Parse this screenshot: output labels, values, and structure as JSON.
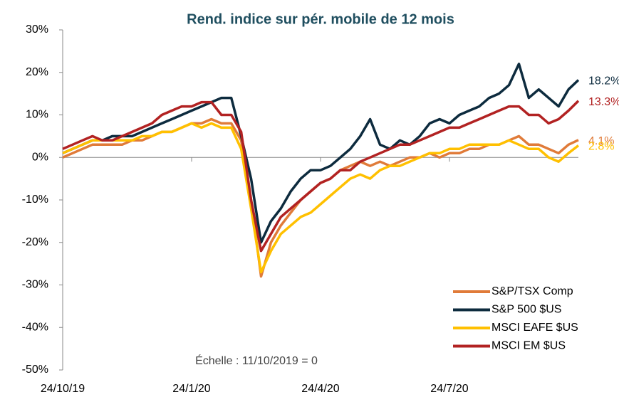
{
  "chart_data": {
    "type": "line",
    "title": "Rend. indice sur pér. mobile  de 12 mois",
    "annotation": "Échelle : 11/10/2019 = 0",
    "categories": [
      "24/10/19",
      null,
      null,
      null,
      null,
      null,
      null,
      null,
      null,
      null,
      null,
      null,
      null,
      "24/1/20",
      null,
      null,
      null,
      null,
      null,
      null,
      null,
      null,
      null,
      null,
      null,
      null,
      "24/4/20",
      null,
      null,
      null,
      null,
      null,
      null,
      null,
      null,
      null,
      null,
      null,
      null,
      "24/7/20",
      null,
      null,
      null,
      null,
      null,
      null,
      null,
      null,
      null,
      null,
      null,
      null,
      null
    ],
    "ylim": [
      -50,
      30
    ],
    "yticks": [
      {
        "value": -50,
        "label": "-50%"
      },
      {
        "value": -40,
        "label": "-40%"
      },
      {
        "value": -30,
        "label": "-30%"
      },
      {
        "value": -20,
        "label": "-20%"
      },
      {
        "value": -10,
        "label": "-10%"
      },
      {
        "value": 0,
        "label": "0%"
      },
      {
        "value": 10,
        "label": "10%"
      },
      {
        "value": 20,
        "label": "20%"
      },
      {
        "value": 30,
        "label": "30%"
      }
    ],
    "legend": "lower right",
    "series": [
      {
        "name": "S&P/TSX Comp",
        "color": "#e07b39",
        "end_label": "4.1%",
        "values": [
          0,
          1,
          2,
          3,
          3,
          3,
          3,
          4,
          4,
          5,
          6,
          6,
          7,
          8,
          8,
          9,
          8,
          8,
          4,
          -10,
          -28,
          -20,
          -16,
          -13,
          -10,
          -8,
          -6,
          -5,
          -3,
          -2,
          -1,
          -2,
          -1,
          -2,
          -1,
          0,
          0,
          1,
          0,
          1,
          1,
          2,
          2,
          3,
          3,
          4,
          5,
          3,
          3,
          2,
          1,
          3,
          4.1
        ]
      },
      {
        "name": "S&P 500 $US",
        "color": "#0d2b3e",
        "end_label": "18.2%",
        "values": [
          1,
          2,
          3,
          4,
          4,
          5,
          5,
          5,
          6,
          7,
          8,
          9,
          10,
          11,
          12,
          13,
          14,
          14,
          5,
          -5,
          -20,
          -15,
          -12,
          -8,
          -5,
          -3,
          -3,
          -2,
          0,
          2,
          5,
          9,
          3,
          2,
          4,
          3,
          5,
          8,
          9,
          8,
          10,
          11,
          12,
          14,
          15,
          17,
          22,
          14,
          16,
          14,
          12,
          16,
          18.2
        ]
      },
      {
        "name": "MSCI EAFE $US",
        "color": "#ffc000",
        "end_label": "2.8%",
        "values": [
          1,
          2,
          3,
          4,
          4,
          4,
          4,
          4,
          5,
          5,
          6,
          6,
          7,
          8,
          7,
          8,
          7,
          7,
          2,
          -12,
          -27,
          -22,
          -18,
          -16,
          -14,
          -13,
          -11,
          -9,
          -7,
          -5,
          -4,
          -5,
          -3,
          -2,
          -2,
          -1,
          0,
          1,
          1,
          2,
          2,
          3,
          3,
          3,
          3,
          4,
          3,
          2,
          2,
          0,
          -1,
          1,
          2.8
        ]
      },
      {
        "name": "MSCI EM $US",
        "color": "#b22222",
        "end_label": "13.3%",
        "values": [
          2,
          3,
          4,
          5,
          4,
          4,
          5,
          6,
          7,
          8,
          10,
          11,
          12,
          12,
          13,
          13,
          10,
          10,
          6,
          -10,
          -22,
          -18,
          -14,
          -12,
          -10,
          -8,
          -6,
          -5,
          -3,
          -3,
          -1,
          0,
          1,
          2,
          3,
          3,
          4,
          5,
          6,
          7,
          7,
          8,
          9,
          10,
          11,
          12,
          12,
          10,
          10,
          8,
          9,
          11,
          13.3
        ]
      }
    ]
  }
}
